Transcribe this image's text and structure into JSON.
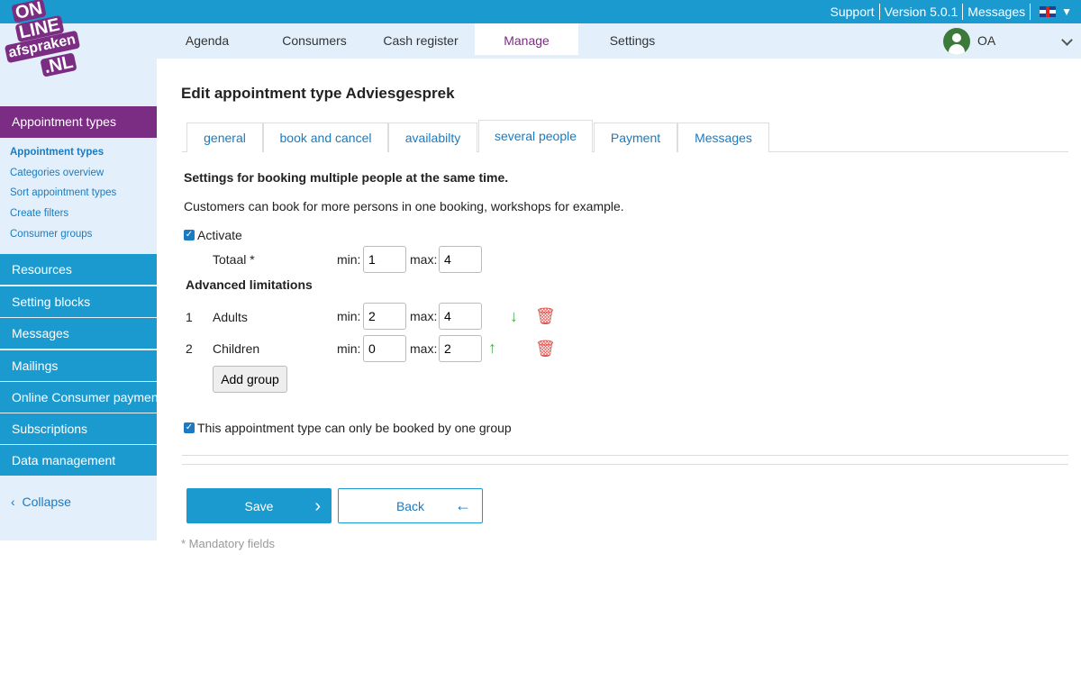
{
  "topbar": {
    "links": [
      "Support",
      "Version 5.0.1",
      "Messages"
    ],
    "language_icon": "uk-flag-icon"
  },
  "logo": {
    "lines": [
      "ON",
      "LINE",
      "afspraken",
      ".NL"
    ]
  },
  "nav": {
    "items": [
      "Agenda",
      "Consumers",
      "Cash register",
      "Manage",
      "Settings"
    ],
    "active": "Manage",
    "user": "OA"
  },
  "sidebar": {
    "header": "Appointment types",
    "sub_items": [
      "Appointment types",
      "Categories overview",
      "Sort appointment types",
      "Create filters",
      "Consumer groups"
    ],
    "items": [
      "Resources",
      "Setting blocks",
      "Messages",
      "Mailings",
      "Online Consumer payments",
      "Subscriptions",
      "Data management"
    ],
    "collapse": "Collapse"
  },
  "page": {
    "title": "Edit appointment type Adviesgesprek",
    "tabs": [
      "general",
      "book and cancel",
      "availabilty",
      "several people",
      "Payment",
      "Messages"
    ],
    "active_tab": "several people",
    "heading": "Settings for booking multiple people at the same time.",
    "description": "Customers can book for more persons in one booking, workshops for example.",
    "activate_label": "Activate",
    "activate_checked": true,
    "total": {
      "label": "Totaal *",
      "min_label": "min:",
      "max_label": "max:",
      "min": "1",
      "max": "4"
    },
    "advanced_heading": "Advanced limitations",
    "groups": [
      {
        "num": "1",
        "name": "Adults",
        "min": "2",
        "max": "4"
      },
      {
        "num": "2",
        "name": "Children",
        "min": "0",
        "max": "2"
      }
    ],
    "add_group": "Add group",
    "one_group_label": "This appointment type can only be booked by one group",
    "one_group_checked": true,
    "save": "Save",
    "back": "Back",
    "mandatory": "* Mandatory fields"
  },
  "colors": {
    "primary": "#1b9ad0",
    "brand": "#7b2c83",
    "arrow": "#4caf50",
    "delete": "#d9534f",
    "avatar": "#3c7a3c"
  }
}
